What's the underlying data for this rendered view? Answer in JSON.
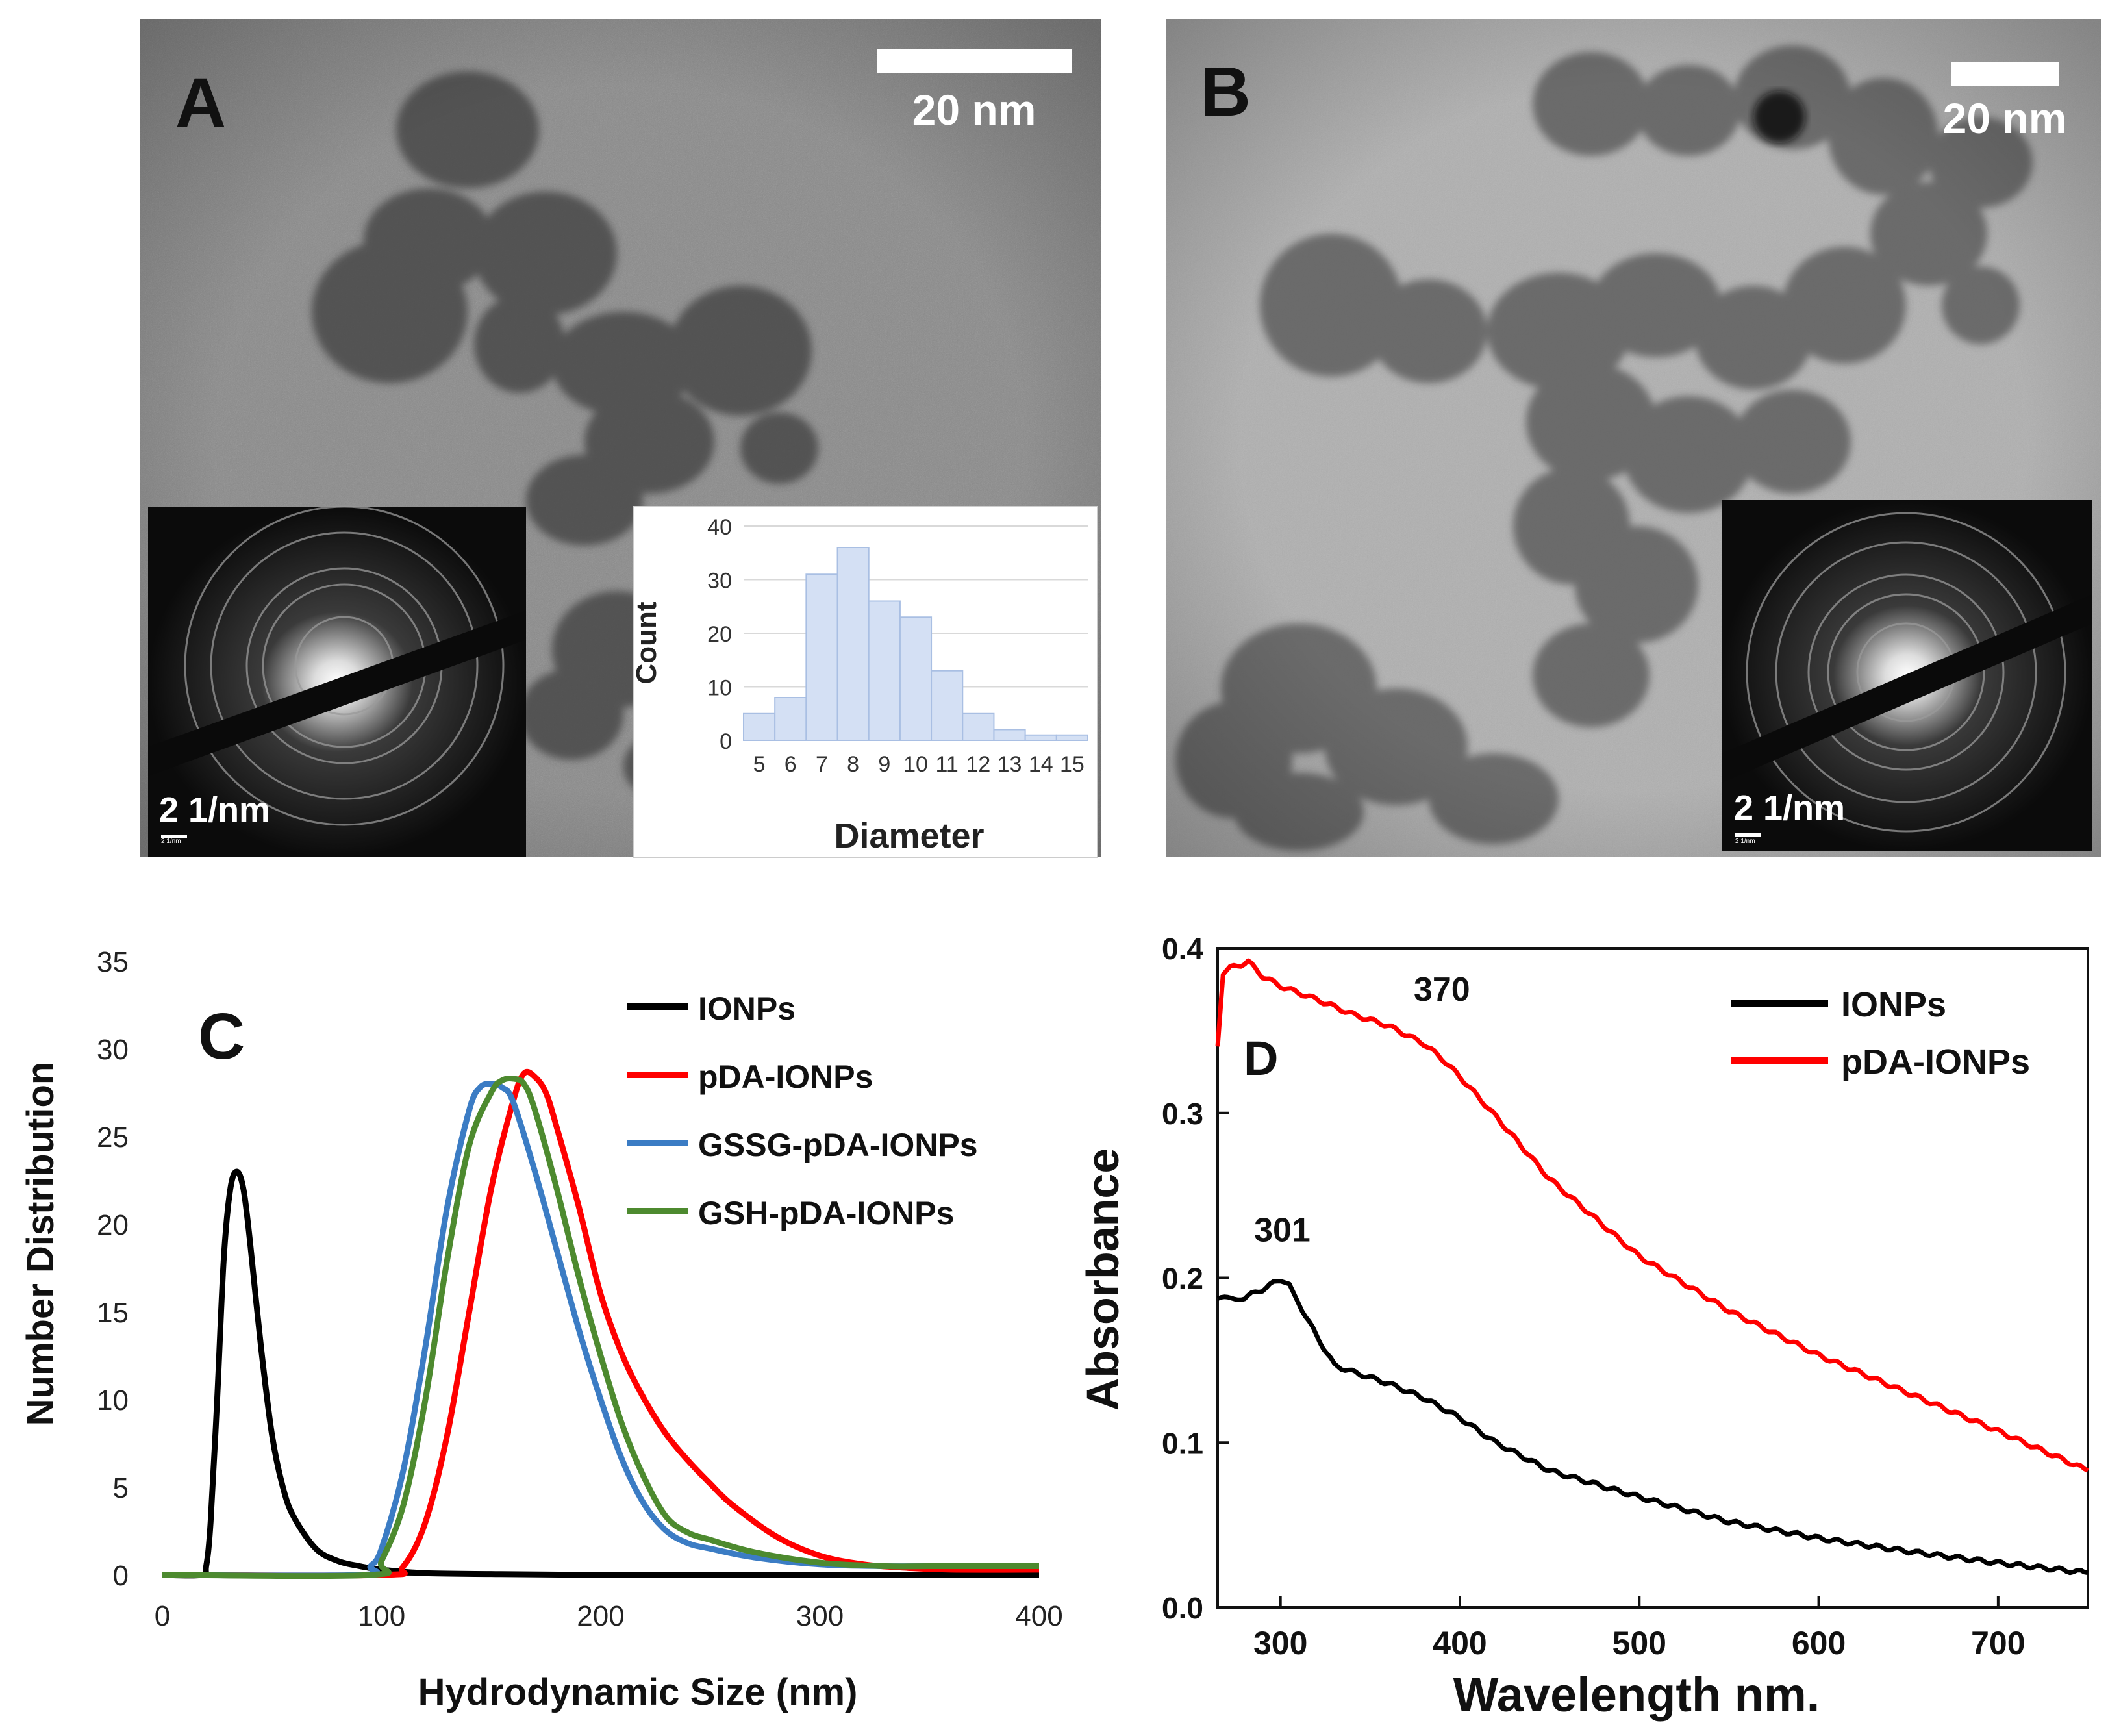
{
  "panels": {
    "A": {
      "label": "A",
      "scalebar": "20 nm",
      "saed_scale": "2 1/nm",
      "saed_tiny": "2 1/nm"
    },
    "B": {
      "label": "B",
      "scalebar": "20 nm",
      "saed_scale": "2 1/nm",
      "saed_tiny": "2 1/nm"
    },
    "C": {
      "label": "C"
    },
    "D": {
      "label": "D"
    }
  },
  "colors": {
    "black": "#000000",
    "red": "#ff0000",
    "blue": "#3b7cc4",
    "green": "#4d8a2f",
    "hist_fill": "#d4e0f4",
    "hist_edge": "#a9bfe3"
  },
  "chart_data": [
    {
      "id": "hist",
      "type": "bar",
      "title": "",
      "xlabel": "Diameter",
      "ylabel": "Count",
      "categories": [
        "5",
        "6",
        "7",
        "8",
        "9",
        "10",
        "11",
        "12",
        "13",
        "14",
        "15"
      ],
      "values": [
        5,
        8,
        31,
        36,
        26,
        23,
        13,
        5,
        2,
        1,
        1
      ],
      "ylim": [
        0,
        40
      ],
      "yticks": [
        0,
        10,
        20,
        30,
        40
      ]
    },
    {
      "id": "dls",
      "type": "line",
      "xlabel": "Hydrodynamic Size (nm)",
      "ylabel": "Number Distribution",
      "xlim": [
        0,
        400
      ],
      "ylim": [
        0,
        35
      ],
      "xticks": [
        0,
        100,
        200,
        300,
        400
      ],
      "yticks": [
        0,
        5,
        10,
        15,
        20,
        25,
        30,
        35
      ],
      "legend_position": "top-right",
      "series": [
        {
          "name": "IONPs",
          "color": "#000000",
          "x": [
            0,
            18,
            20,
            22,
            25,
            28,
            31,
            34,
            37,
            40,
            45,
            50,
            55,
            60,
            70,
            80,
            90,
            100,
            120,
            150,
            200,
            300,
            400
          ],
          "y": [
            0,
            0,
            0.5,
            3,
            10,
            18,
            22,
            23,
            22,
            19,
            13,
            8,
            5,
            3.3,
            1.5,
            0.8,
            0.5,
            0.3,
            0.1,
            0.05,
            0,
            0,
            0
          ]
        },
        {
          "name": "pDA-IONPs",
          "color": "#ff0000",
          "x": [
            0,
            100,
            110,
            120,
            130,
            140,
            150,
            160,
            165,
            170,
            175,
            180,
            190,
            200,
            210,
            220,
            230,
            240,
            250,
            260,
            280,
            300,
            320,
            340,
            360,
            400
          ],
          "y": [
            0,
            0,
            0.5,
            3,
            8,
            15,
            22,
            27,
            28.6,
            28.4,
            27.5,
            25.5,
            21,
            16,
            12.5,
            10,
            8,
            6.5,
            5.2,
            4,
            2.2,
            1.1,
            0.6,
            0.4,
            0.3,
            0.3
          ]
        },
        {
          "name": "GSSG-pDA-IONPs",
          "color": "#3b7cc4",
          "x": [
            0,
            90,
            95,
            100,
            110,
            120,
            130,
            140,
            145,
            150,
            155,
            160,
            170,
            180,
            190,
            200,
            210,
            220,
            230,
            240,
            250,
            270,
            300,
            330,
            350,
            400
          ],
          "y": [
            0,
            0,
            0.5,
            1.5,
            6,
            13,
            21,
            26.5,
            27.8,
            28,
            27.8,
            27,
            23,
            18.5,
            14,
            10,
            6.5,
            4,
            2.5,
            1.8,
            1.5,
            1,
            0.6,
            0.5,
            0.5,
            0.5
          ]
        },
        {
          "name": "GSH-pDA-IONPs",
          "color": "#4d8a2f",
          "x": [
            0,
            95,
            100,
            110,
            120,
            130,
            140,
            150,
            155,
            160,
            165,
            170,
            180,
            190,
            200,
            210,
            220,
            230,
            240,
            250,
            270,
            300,
            330,
            350,
            400
          ],
          "y": [
            0,
            0,
            0.8,
            4,
            10,
            18,
            24.5,
            27.5,
            28.2,
            28.3,
            28,
            26.5,
            22,
            17,
            12.5,
            8.5,
            5.5,
            3.3,
            2.4,
            2,
            1.3,
            0.7,
            0.5,
            0.5,
            0.5
          ]
        }
      ]
    },
    {
      "id": "uvvis",
      "type": "line",
      "xlabel": "Wavelength nm.",
      "ylabel": "Absorbance",
      "xlim": [
        265,
        750
      ],
      "ylim": [
        0.0,
        0.4
      ],
      "xticks": [
        300,
        400,
        500,
        600,
        700
      ],
      "yticks": [
        0.0,
        0.1,
        0.2,
        0.3,
        0.4
      ],
      "ytick_labels": [
        "0.0",
        "0.1",
        "0.2",
        "0.3",
        "0.4"
      ],
      "legend_position": "top-right",
      "annotations": [
        {
          "text": "370",
          "x": 390,
          "y": 0.368
        },
        {
          "text": "301",
          "x": 301,
          "y": 0.222
        }
      ],
      "series": [
        {
          "name": "IONPs",
          "color": "#000000",
          "x": [
            265,
            280,
            290,
            300,
            305,
            310,
            320,
            330,
            340,
            360,
            380,
            400,
            420,
            450,
            500,
            550,
            600,
            650,
            700,
            750
          ],
          "y": [
            0.187,
            0.188,
            0.193,
            0.199,
            0.197,
            0.185,
            0.165,
            0.147,
            0.143,
            0.136,
            0.127,
            0.115,
            0.1,
            0.083,
            0.067,
            0.052,
            0.042,
            0.034,
            0.027,
            0.021
          ]
        },
        {
          "name": "pDA-IONPs",
          "color": "#ff0000",
          "x": [
            265,
            268,
            272,
            278,
            282,
            290,
            300,
            320,
            340,
            360,
            380,
            390,
            400,
            420,
            450,
            500,
            550,
            600,
            650,
            700,
            750
          ],
          "y": [
            0.34,
            0.385,
            0.388,
            0.39,
            0.392,
            0.383,
            0.377,
            0.369,
            0.36,
            0.353,
            0.342,
            0.333,
            0.322,
            0.298,
            0.26,
            0.213,
            0.18,
            0.153,
            0.13,
            0.107,
            0.083
          ]
        }
      ]
    }
  ]
}
